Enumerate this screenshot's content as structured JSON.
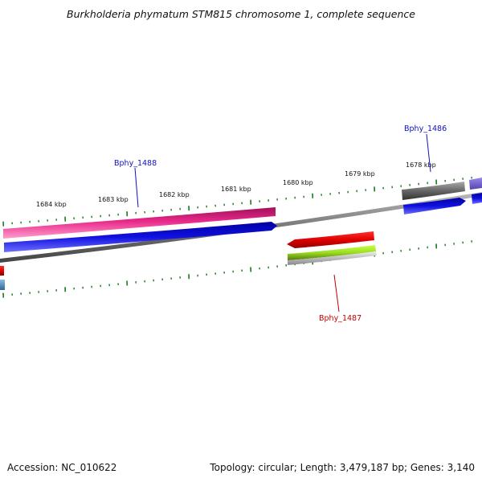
{
  "title": "Burkholderia phymatum STM815 chromosome 1, complete sequence",
  "footer": {
    "accession": "Accession: NC_010622",
    "summary": "Topology: circular; Length: 3,479,187 bp; Genes: 3,140"
  },
  "ticks": {
    "labels": [
      "1684 kbp",
      "1683 kbp",
      "1682 kbp",
      "1681 kbp",
      "1680 kbp",
      "1679 kbp",
      "1678 kbp"
    ],
    "color": "#1a7a1a"
  },
  "genes": [
    {
      "name": "Bphy_1488",
      "color": "#1010c0"
    },
    {
      "name": "Bphy_1487",
      "color": "#c00000"
    },
    {
      "name": "Bphy_1486",
      "color": "#1010c0"
    }
  ],
  "feature_colors": {
    "magenta": "#e0207f",
    "blue": "#1010e0",
    "red": "#e00000",
    "lime": "#99dd22",
    "gray": "#666666",
    "purple": "#7766cc",
    "steelblue": "#4488bb",
    "backbone": "#888888"
  }
}
